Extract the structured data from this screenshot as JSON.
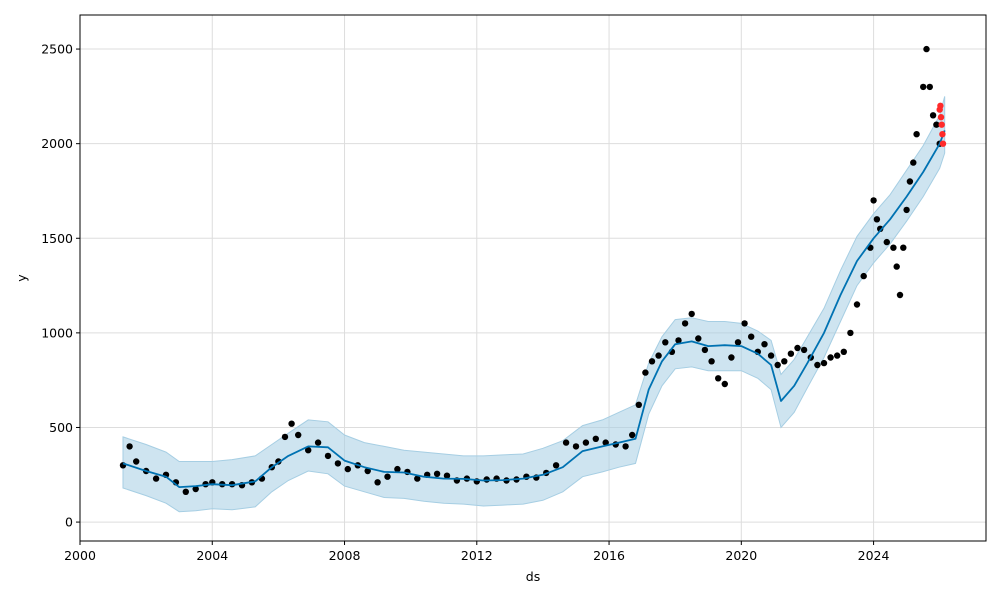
{
  "chart_data": {
    "type": "line",
    "title": "",
    "xlabel": "ds",
    "ylabel": "y",
    "xlim": [
      2000.0,
      2027.4
    ],
    "ylim": [
      -100,
      2680
    ],
    "grid": true,
    "x_ticks": [
      2000,
      2004,
      2008,
      2012,
      2016,
      2020,
      2024
    ],
    "x_tick_labels": [
      "2000",
      "2004",
      "2008",
      "2012",
      "2016",
      "2020",
      "2024"
    ],
    "y_ticks": [
      0,
      500,
      1000,
      1500,
      2000,
      2500
    ],
    "y_tick_labels": [
      "0",
      "500",
      "1000",
      "1500",
      "2000",
      "2500"
    ],
    "colors": {
      "forecast_line": "#0072B2",
      "uncertainty_band": "#A6CEE3",
      "observed_points": "#000000",
      "future_points": "#ff2a2a",
      "grid": "#dddddd"
    },
    "forecast": {
      "x": [
        2001.3,
        2002.0,
        2002.6,
        2003.0,
        2003.5,
        2004.0,
        2004.6,
        2005.3,
        2005.8,
        2006.3,
        2006.9,
        2007.5,
        2008.0,
        2008.6,
        2009.2,
        2009.8,
        2010.4,
        2011.0,
        2011.6,
        2012.2,
        2012.8,
        2013.4,
        2014.0,
        2014.6,
        2015.2,
        2015.8,
        2016.3,
        2016.8,
        2017.2,
        2017.6,
        2018.0,
        2018.5,
        2019.0,
        2019.5,
        2020.0,
        2020.5,
        2020.9,
        2021.2,
        2021.6,
        2022.0,
        2022.5,
        2023.0,
        2023.5,
        2024.0,
        2024.5,
        2025.0,
        2025.5,
        2026.0,
        2026.15
      ],
      "y": [
        310,
        270,
        240,
        185,
        190,
        200,
        195,
        215,
        290,
        350,
        400,
        395,
        325,
        290,
        265,
        262,
        240,
        230,
        228,
        220,
        222,
        230,
        250,
        290,
        375,
        400,
        420,
        440,
        700,
        850,
        940,
        955,
        930,
        935,
        930,
        890,
        830,
        640,
        720,
        840,
        1000,
        1200,
        1380,
        1500,
        1600,
        1720,
        1850,
        2000,
        2070
      ]
    },
    "band_upper": [
      450,
      410,
      370,
      320,
      320,
      320,
      330,
      350,
      410,
      470,
      540,
      530,
      460,
      420,
      400,
      380,
      370,
      360,
      350,
      350,
      355,
      360,
      390,
      430,
      510,
      540,
      580,
      620,
      840,
      980,
      1070,
      1080,
      1060,
      1060,
      1050,
      1010,
      960,
      780,
      860,
      980,
      1130,
      1330,
      1510,
      1630,
      1730,
      1860,
      1990,
      2150,
      2250
    ],
    "band_lower": [
      180,
      140,
      100,
      55,
      60,
      70,
      65,
      80,
      160,
      220,
      270,
      255,
      190,
      160,
      130,
      125,
      110,
      100,
      95,
      85,
      90,
      95,
      115,
      160,
      240,
      265,
      290,
      310,
      570,
      720,
      810,
      820,
      800,
      800,
      800,
      760,
      700,
      500,
      580,
      710,
      870,
      1060,
      1250,
      1370,
      1470,
      1590,
      1720,
      1870,
      1950
    ],
    "observed": {
      "x": [
        2001.3,
        2001.5,
        2001.7,
        2002.0,
        2002.3,
        2002.6,
        2002.9,
        2003.2,
        2003.5,
        2003.8,
        2004.0,
        2004.3,
        2004.6,
        2004.9,
        2005.2,
        2005.5,
        2005.8,
        2006.0,
        2006.2,
        2006.4,
        2006.6,
        2006.9,
        2007.2,
        2007.5,
        2007.8,
        2008.1,
        2008.4,
        2008.7,
        2009.0,
        2009.3,
        2009.6,
        2009.9,
        2010.2,
        2010.5,
        2010.8,
        2011.1,
        2011.4,
        2011.7,
        2012.0,
        2012.3,
        2012.6,
        2012.9,
        2013.2,
        2013.5,
        2013.8,
        2014.1,
        2014.4,
        2014.7,
        2015.0,
        2015.3,
        2015.6,
        2015.9,
        2016.2,
        2016.5,
        2016.7,
        2016.9,
        2017.1,
        2017.3,
        2017.5,
        2017.7,
        2017.9,
        2018.1,
        2018.3,
        2018.5,
        2018.7,
        2018.9,
        2019.1,
        2019.3,
        2019.5,
        2019.7,
        2019.9,
        2020.1,
        2020.3,
        2020.5,
        2020.7,
        2020.9,
        2021.1,
        2021.3,
        2021.5,
        2021.7,
        2021.9,
        2022.1,
        2022.3,
        2022.5,
        2022.7,
        2022.9,
        2023.1,
        2023.3,
        2023.5,
        2023.7,
        2023.9,
        2024.0,
        2024.1,
        2024.2,
        2024.4,
        2024.6,
        2024.7,
        2024.8,
        2024.9,
        2025.0,
        2025.1,
        2025.2,
        2025.3,
        2025.5,
        2025.6,
        2025.7,
        2025.8,
        2025.9,
        2026.0
      ],
      "y": [
        300,
        400,
        320,
        270,
        230,
        250,
        210,
        160,
        175,
        200,
        210,
        200,
        200,
        195,
        210,
        230,
        290,
        320,
        450,
        520,
        460,
        380,
        420,
        350,
        310,
        280,
        300,
        270,
        210,
        240,
        280,
        265,
        230,
        250,
        255,
        245,
        220,
        230,
        215,
        225,
        230,
        220,
        225,
        240,
        235,
        260,
        300,
        420,
        400,
        420,
        440,
        420,
        410,
        400,
        460,
        620,
        790,
        850,
        880,
        950,
        900,
        960,
        1050,
        1100,
        970,
        910,
        850,
        760,
        730,
        870,
        950,
        1050,
        980,
        900,
        940,
        880,
        830,
        850,
        890,
        920,
        910,
        870,
        830,
        840,
        870,
        880,
        900,
        1000,
        1150,
        1300,
        1450,
        1700,
        1600,
        1550,
        1480,
        1450,
        1350,
        1200,
        1450,
        1650,
        1800,
        1900,
        2050,
        2300,
        2500,
        2300,
        2150,
        2100,
        2000
      ]
    },
    "future": {
      "x": [
        2026.0,
        2026.02,
        2026.04,
        2026.06,
        2026.08,
        2026.1
      ],
      "y": [
        2180,
        2200,
        2140,
        2100,
        2050,
        2000
      ]
    }
  }
}
